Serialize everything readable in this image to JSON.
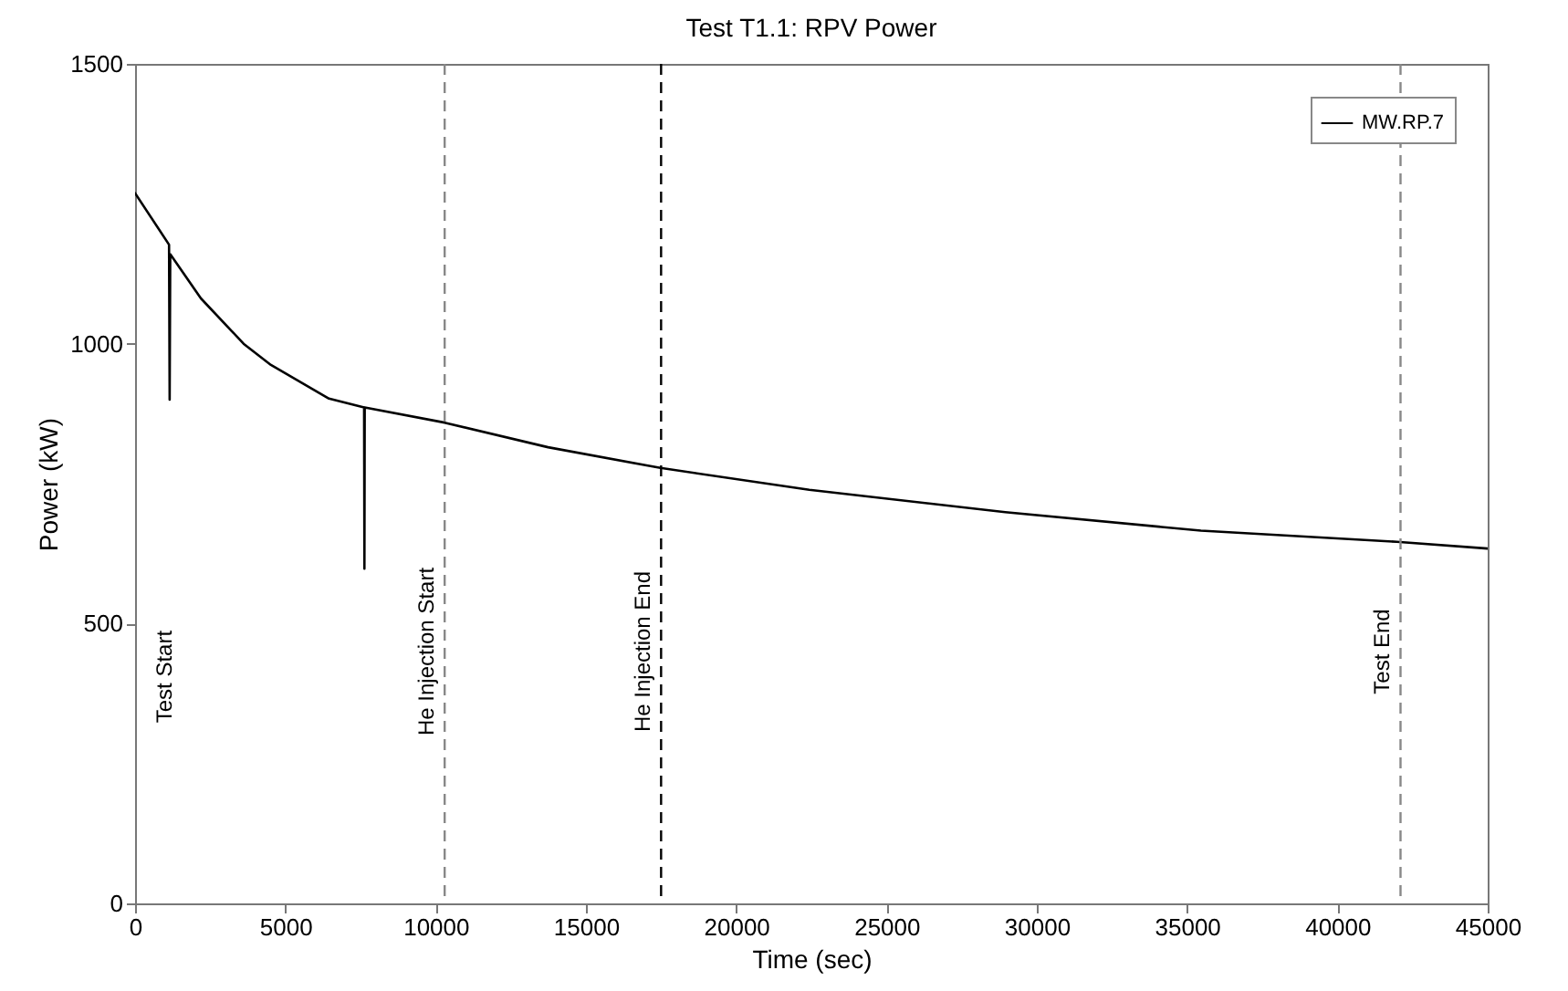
{
  "chart_data": {
    "type": "line",
    "title": "Test T1.1: RPV Power",
    "xlabel": "Time (sec)",
    "ylabel": "Power (kW)",
    "x": [
      0,
      1130,
      1150,
      1170,
      2190,
      3610,
      4520,
      6450,
      7620,
      7630,
      7640,
      10300,
      13740,
      17480,
      22430,
      28950,
      35460,
      41980,
      45000
    ],
    "series": [
      {
        "name": "MW.RP.7",
        "color": "#000000",
        "values": [
          1269,
          1177,
          900,
          1160,
          1081,
          1000,
          962,
          902,
          886,
          598,
          886,
          859,
          815,
          778,
          739,
          699,
          666,
          646,
          634
        ]
      }
    ],
    "xlim": [
      0,
      45000
    ],
    "xticks": [
      0,
      5000,
      10000,
      15000,
      20000,
      25000,
      30000,
      35000,
      40000,
      45000
    ],
    "ylim": [
      0,
      1500
    ],
    "yticks": [
      0,
      500,
      1000,
      1500
    ],
    "grid": false,
    "legend": "top right",
    "line_style": "solid",
    "marker": "none",
    "ref_lines": [
      {
        "axis": "x",
        "value": 10300,
        "label": "He Injection Start",
        "color": "#888888",
        "line_style": "dashed"
      },
      {
        "axis": "x",
        "value": 17500,
        "label": "He Injection End",
        "color": "#000000",
        "line_style": "dashed"
      },
      {
        "axis": "x",
        "value": 42100,
        "label": "Test End",
        "color": "#888888",
        "line_style": "dashed"
      }
    ],
    "annotations": [
      "Test Start"
    ]
  }
}
